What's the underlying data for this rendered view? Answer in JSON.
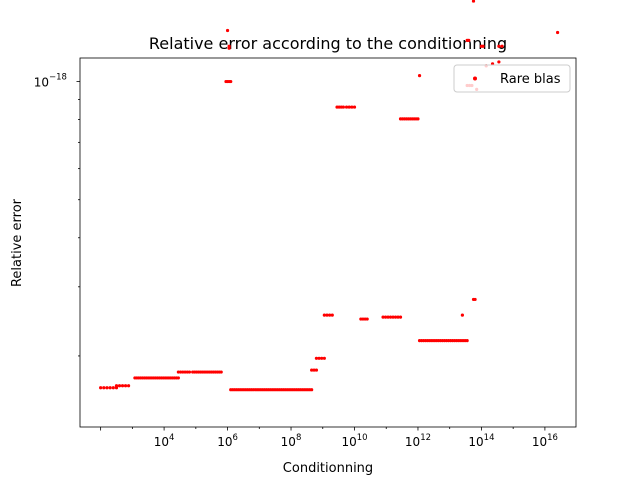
{
  "chart_data": {
    "type": "scatter",
    "title": "Relative error according to the conditionning",
    "xlabel": "Conditionning",
    "ylabel": "Relative error",
    "xscale": "log",
    "yscale": "log",
    "xlim_log10": [
      1.35,
      16.98
    ],
    "ylim_log10": [
      -18.88,
      -17.94
    ],
    "x_ticks": [
      {
        "log10": 4,
        "base": "10",
        "exp": "4"
      },
      {
        "log10": 6,
        "base": "10",
        "exp": "6"
      },
      {
        "log10": 8,
        "base": "10",
        "exp": "8"
      },
      {
        "log10": 10,
        "base": "10",
        "exp": "10"
      },
      {
        "log10": 12,
        "base": "10",
        "exp": "12"
      },
      {
        "log10": 14,
        "base": "10",
        "exp": "14"
      },
      {
        "log10": 16,
        "base": "10",
        "exp": "16"
      }
    ],
    "y_ticks": [
      {
        "log10": -18,
        "base": "10",
        "exp": "−18"
      }
    ],
    "legend": {
      "location": "upper-right",
      "entries": [
        "Rare blas"
      ]
    },
    "series": [
      {
        "name": "Rare blas",
        "color": "#ff0000",
        "marker": "dot",
        "segments": [
          {
            "x_from": 2.0,
            "x_to": 2.5,
            "y": -18.78,
            "n": 6
          },
          {
            "x_from": 2.5,
            "x_to": 2.88,
            "y": -18.775,
            "n": 5
          },
          {
            "x_from": 3.08,
            "x_to": 4.45,
            "y": -18.755,
            "n": 24
          },
          {
            "x_from": 4.45,
            "x_to": 4.8,
            "y": -18.74,
            "n": 6
          },
          {
            "x_from": 4.9,
            "x_to": 5.8,
            "y": -18.74,
            "n": 16
          },
          {
            "x_from": 5.95,
            "x_to": 6.1,
            "y": -18.0,
            "n": 4
          },
          {
            "x_from": 6.1,
            "x_to": 8.65,
            "y": -18.785,
            "n": 44
          },
          {
            "x_from": 8.65,
            "x_to": 8.8,
            "y": -18.735,
            "n": 3
          },
          {
            "x_from": 8.8,
            "x_to": 9.05,
            "y": -18.705,
            "n": 4
          },
          {
            "x_from": 9.05,
            "x_to": 9.3,
            "y": -18.595,
            "n": 4
          },
          {
            "x_from": 9.45,
            "x_to": 9.65,
            "y": -18.065,
            "n": 4
          },
          {
            "x_from": 9.75,
            "x_to": 10.0,
            "y": -18.065,
            "n": 4
          },
          {
            "x_from": 10.2,
            "x_to": 10.4,
            "y": -18.605,
            "n": 4
          },
          {
            "x_from": 10.9,
            "x_to": 11.45,
            "y": -18.6,
            "n": 8
          },
          {
            "x_from": 11.45,
            "x_to": 12.0,
            "y": -18.095,
            "n": 10
          },
          {
            "x_from": 12.05,
            "x_to": 13.55,
            "y": -18.66,
            "n": 24
          },
          {
            "x_from": 13.55,
            "x_to": 13.7,
            "y": -18.01,
            "n": 3
          }
        ],
        "points": [
          {
            "x": 1.95,
            "y": -17.6
          },
          {
            "x": 6.0,
            "y": -17.87
          },
          {
            "x": 6.05,
            "y": -17.91
          },
          {
            "x": 6.05,
            "y": -17.915
          },
          {
            "x": 10.0,
            "y": -17.725
          },
          {
            "x": 12.05,
            "y": -17.985
          },
          {
            "x": 12.1,
            "y": -17.5
          },
          {
            "x": 13.4,
            "y": -18.595
          },
          {
            "x": 13.45,
            "y": -17.71
          },
          {
            "x": 13.55,
            "y": -17.895
          },
          {
            "x": 13.6,
            "y": -17.895
          },
          {
            "x": 13.75,
            "y": -17.795
          },
          {
            "x": 13.75,
            "y": -18.555
          },
          {
            "x": 13.8,
            "y": -18.555
          },
          {
            "x": 13.85,
            "y": -18.02
          },
          {
            "x": 14.0,
            "y": -17.91
          },
          {
            "x": 14.05,
            "y": -17.91
          },
          {
            "x": 14.15,
            "y": -17.96
          },
          {
            "x": 14.35,
            "y": -17.955
          },
          {
            "x": 14.55,
            "y": -17.95
          },
          {
            "x": 14.55,
            "y": -17.91
          },
          {
            "x": 14.65,
            "y": -17.91
          },
          {
            "x": 16.4,
            "y": -17.875
          }
        ]
      }
    ]
  }
}
